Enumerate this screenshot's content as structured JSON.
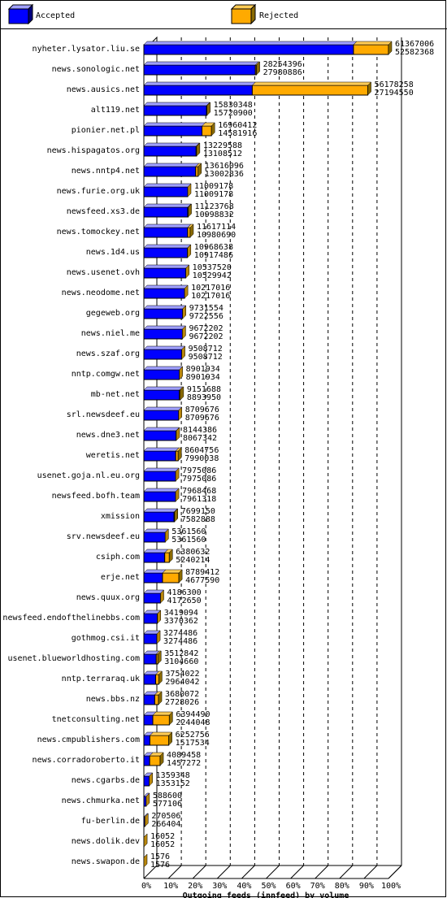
{
  "chart_data": {
    "type": "bar",
    "orientation": "horizontal",
    "stacked_3d": true,
    "xlabel": "Outgoing feeds (innfeed) by volume",
    "x_ticks": [
      "0%",
      "10%",
      "20%",
      "30%",
      "40%",
      "50%",
      "60%",
      "70%",
      "80%",
      "90%",
      "100%"
    ],
    "xlim": [
      0,
      100
    ],
    "grid": "dashed vertical",
    "legend_position": "top",
    "colors": {
      "accepted": "#0000ff",
      "rejected": "#ffaa00",
      "top": "#a0a0ff",
      "side": "#000080",
      "top_rej": "#ffcc55",
      "side_rej": "#8a6a00",
      "accepted_only_side": "#b8860b"
    },
    "series": [
      {
        "name": "Accepted",
        "key": "accepted"
      },
      {
        "name": "Rejected",
        "key": "rejected"
      }
    ],
    "categories": [
      "nyheter.lysator.liu.se",
      "news.sonologic.net",
      "news.ausics.net",
      "alt119.net",
      "pionier.net.pl",
      "news.hispagatos.org",
      "news.nntp4.net",
      "news.furie.org.uk",
      "newsfeed.xs3.de",
      "news.tomockey.net",
      "news.1d4.us",
      "news.usenet.ovh",
      "news.neodome.net",
      "gegeweb.org",
      "news.niel.me",
      "news.szaf.org",
      "nntp.comgw.net",
      "mb-net.net",
      "srl.newsdeef.eu",
      "news.dne3.net",
      "weretis.net",
      "usenet.goja.nl.eu.org",
      "newsfeed.bofh.team",
      "xmission",
      "srv.newsdeef.eu",
      "csiph.com",
      "erje.net",
      "news.quux.org",
      "newsfeed.endofthelinebbs.com",
      "gothmog.csi.it",
      "usenet.blueworldhosting.com",
      "nntp.terraraq.uk",
      "news.bbs.nz",
      "tnetconsulting.net",
      "news.cmpublishers.com",
      "news.corradoroberto.it",
      "news.cgarbs.de",
      "news.chmurka.net",
      "fu-berlin.de",
      "news.dolik.dev",
      "news.swapon.de"
    ],
    "totals": [
      "61367006",
      "28254396",
      "56178258",
      "15830348",
      "16960412",
      "13229588",
      "13616096",
      "11009178",
      "11123768",
      "11617114",
      "10968638",
      "10537520",
      "10217016",
      "9731554",
      "9672202",
      "9508712",
      "8901934",
      "9151688",
      "8709676",
      "8144386",
      "8604756",
      "7975086",
      "7968468",
      "7699150",
      "5361560",
      "6380632",
      "8789412",
      "4186300",
      "3419094",
      "3274486",
      "3512842",
      "3754022",
      "3680072",
      "6394490",
      "6252756",
      "4089458",
      "1359348",
      "588600",
      "270506",
      "16052",
      "1576"
    ],
    "accepted": [
      "52582368",
      "27980886",
      "27194550",
      "15720900",
      "14581916",
      "13108512",
      "13002836",
      "11009178",
      "10998832",
      "10980690",
      "10917486",
      "10529942",
      "10217016",
      "9722556",
      "9672202",
      "9508712",
      "8901934",
      "8893950",
      "8709676",
      "8067342",
      "7990038",
      "7975086",
      "7961318",
      "7582888",
      "5361560",
      "5240214",
      "4677590",
      "4172650",
      "3370362",
      "3274486",
      "3104660",
      "2964042",
      "2728026",
      "2244048",
      "1517534",
      "1457272",
      "1353152",
      "577106",
      "266404",
      "16052",
      "1576"
    ]
  }
}
